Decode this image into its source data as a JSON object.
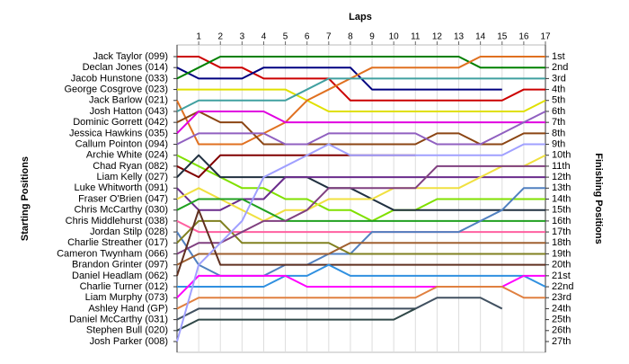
{
  "chart_data": {
    "type": "lap",
    "title": "Laps",
    "y_label": "Starting Positions",
    "y2_label": "Finishing Positions",
    "x": [
      0,
      1,
      2,
      3,
      4,
      5,
      6,
      7,
      8,
      9,
      10,
      11,
      12,
      13,
      14,
      15,
      16,
      17
    ],
    "xlim": [
      0,
      17
    ],
    "xticks": [
      1,
      2,
      3,
      4,
      5,
      6,
      7,
      8,
      9,
      10,
      11,
      12,
      13,
      14,
      15,
      16,
      17
    ],
    "ylim": [
      1,
      27
    ],
    "grid": true,
    "finish_labels": [
      "1st",
      "2nd",
      "3rd",
      "4th",
      "5th",
      "6th",
      "7th",
      "8th",
      "9th",
      "10th",
      "11th",
      "12th",
      "13th",
      "14th",
      "15th",
      "16th",
      "17th",
      "18th",
      "19th",
      "20th",
      "21st",
      "22nd",
      "23rd",
      "24th",
      "25th",
      "26th",
      "27th"
    ],
    "series": [
      {
        "name": "Jack Taylor (099)",
        "color": "#cc0000",
        "values": [
          1,
          1,
          2,
          2,
          3,
          3,
          3,
          3,
          5,
          5,
          5,
          5,
          5,
          5,
          5,
          5,
          4,
          4
        ]
      },
      {
        "name": "Declan Jones (014)",
        "color": "#000080",
        "values": [
          2,
          3,
          3,
          3,
          2,
          2,
          2,
          2,
          2,
          4,
          4,
          4,
          4,
          4,
          4,
          4,
          null,
          null
        ]
      },
      {
        "name": "Jacob Hunstone (033)",
        "color": "#008000",
        "values": [
          3,
          2,
          1,
          1,
          1,
          1,
          1,
          1,
          1,
          1,
          1,
          1,
          1,
          1,
          2,
          2,
          2,
          2
        ]
      },
      {
        "name": "George Cosgrove (023)",
        "color": "#e0e000",
        "values": [
          4,
          4,
          4,
          4,
          4,
          4,
          5,
          6,
          6,
          6,
          6,
          6,
          6,
          6,
          6,
          6,
          6,
          5
        ]
      },
      {
        "name": "Jack Barlow (021)",
        "color": "#e07020",
        "values": [
          5,
          9,
          9,
          9,
          8,
          7,
          5,
          4,
          3,
          2,
          2,
          2,
          2,
          2,
          1,
          1,
          1,
          1
        ]
      },
      {
        "name": "Josh Hatton (043)",
        "color": "#40a0a0",
        "values": [
          6,
          5,
          5,
          5,
          5,
          5,
          4,
          3,
          3,
          3,
          3,
          3,
          3,
          3,
          3,
          3,
          3,
          3
        ]
      },
      {
        "name": "Dominic Gorrett (042)",
        "color": "#8b4513",
        "values": [
          7,
          6,
          7,
          7,
          9,
          9,
          9,
          9,
          9,
          9,
          9,
          9,
          8,
          8,
          9,
          9,
          8,
          8
        ]
      },
      {
        "name": "Jessica Hawkins (035)",
        "color": "#e000e0",
        "values": [
          8,
          6,
          6,
          6,
          6,
          7,
          7,
          7,
          7,
          7,
          7,
          7,
          7,
          7,
          7,
          7,
          7,
          7
        ]
      },
      {
        "name": "Callum Pointon (094)",
        "color": "#9060c0",
        "values": [
          9,
          8,
          8,
          8,
          8,
          9,
          9,
          8,
          8,
          8,
          8,
          8,
          9,
          9,
          9,
          8,
          7,
          6
        ]
      },
      {
        "name": "Archie White (024)",
        "color": "#80e000",
        "values": [
          10,
          11,
          12,
          13,
          13,
          14,
          14,
          15,
          15,
          16,
          15,
          15,
          14,
          14,
          14,
          14,
          14,
          14
        ]
      },
      {
        "name": "Chad Ryan (082)",
        "color": "#800000",
        "values": [
          11,
          12,
          10,
          10,
          10,
          10,
          10,
          10,
          10,
          10,
          10,
          10,
          null,
          null,
          null,
          null,
          null,
          null
        ]
      },
      {
        "name": "Liam Kelly (027)",
        "color": "#203040",
        "values": [
          12,
          10,
          12,
          12,
          12,
          12,
          12,
          13,
          13,
          14,
          15,
          15,
          15,
          15,
          15,
          15,
          15,
          15
        ]
      },
      {
        "name": "Luke Whitworth (091)",
        "color": "#6a2c8c",
        "values": [
          13,
          15,
          15,
          14,
          14,
          12,
          12,
          12,
          12,
          12,
          12,
          12,
          12,
          12,
          12,
          12,
          12,
          12
        ]
      },
      {
        "name": "Fraser O'Brien (047)",
        "color": "#f0e040",
        "values": [
          14,
          13,
          14,
          15,
          16,
          15,
          15,
          14,
          14,
          14,
          13,
          13,
          13,
          13,
          12,
          11,
          11,
          10
        ]
      },
      {
        "name": "Chris McCarthy (030)",
        "color": "#20a020",
        "values": [
          15,
          14,
          14,
          14,
          15,
          16,
          16,
          16,
          16,
          16,
          16,
          16,
          16,
          16,
          16,
          16,
          16,
          16
        ]
      },
      {
        "name": "Chris Middlehurst (038)",
        "color": "#ff60a0",
        "values": [
          16,
          17,
          17,
          17,
          17,
          17,
          17,
          17,
          17,
          17,
          17,
          17,
          17,
          17,
          17,
          17,
          17,
          17
        ]
      },
      {
        "name": "Jordan Stilp (028)",
        "color": "#5080c0",
        "values": [
          17,
          20,
          21,
          21,
          21,
          20,
          20,
          19,
          19,
          17,
          17,
          17,
          17,
          17,
          16,
          15,
          13,
          13
        ]
      },
      {
        "name": "Charlie Streather (017)",
        "color": "#808020",
        "values": [
          18,
          16,
          16,
          18,
          18,
          18,
          18,
          18,
          19,
          19,
          19,
          19,
          19,
          19,
          19,
          19,
          19,
          19
        ]
      },
      {
        "name": "Cameron Twynham (066)",
        "color": "#804080",
        "values": [
          19,
          18,
          18,
          17,
          16,
          16,
          15,
          13,
          13,
          13,
          13,
          13,
          11,
          11,
          11,
          11,
          11,
          11
        ]
      },
      {
        "name": "Brandon Grinter (097)",
        "color": "#a06030",
        "values": [
          20,
          19,
          19,
          19,
          19,
          19,
          19,
          19,
          18,
          18,
          18,
          18,
          18,
          18,
          18,
          18,
          18,
          18
        ]
      },
      {
        "name": "Daniel Headlam (062)",
        "color": "#603020",
        "values": [
          21,
          15,
          20,
          20,
          20,
          20,
          20,
          20,
          20,
          20,
          20,
          20,
          20,
          20,
          20,
          20,
          20,
          20
        ]
      },
      {
        "name": "Charlie Turner (012)",
        "color": "#3090e0",
        "values": [
          22,
          22,
          22,
          22,
          22,
          21,
          21,
          20,
          21,
          21,
          21,
          21,
          21,
          21,
          21,
          21,
          21,
          22
        ]
      },
      {
        "name": "Liam Murphy (073)",
        "color": "#ff00ff",
        "values": [
          23,
          21,
          21,
          21,
          21,
          21,
          22,
          22,
          22,
          22,
          22,
          22,
          22,
          22,
          22,
          22,
          21,
          21
        ]
      },
      {
        "name": "Ashley Hand (GP)",
        "color": "#e08040",
        "values": [
          24,
          23,
          23,
          23,
          23,
          23,
          23,
          23,
          23,
          23,
          23,
          23,
          22,
          22,
          22,
          22,
          23,
          23
        ]
      },
      {
        "name": "Daniel McCarthy (031)",
        "color": "#405060",
        "values": [
          25,
          24,
          24,
          24,
          24,
          24,
          24,
          24,
          24,
          24,
          24,
          24,
          23,
          23,
          23,
          24,
          null,
          null
        ]
      },
      {
        "name": "Stephen Bull (020)",
        "color": "#304848",
        "values": [
          26,
          25,
          25,
          25,
          25,
          25,
          25,
          25,
          25,
          25,
          25,
          24,
          null,
          null,
          null,
          null,
          null,
          null
        ]
      },
      {
        "name": "Josh Parker (008)",
        "color": "#a0a0ff",
        "values": [
          27,
          20,
          18,
          16,
          12,
          11,
          10,
          9,
          10,
          10,
          10,
          10,
          10,
          10,
          10,
          10,
          9,
          9
        ]
      }
    ]
  }
}
